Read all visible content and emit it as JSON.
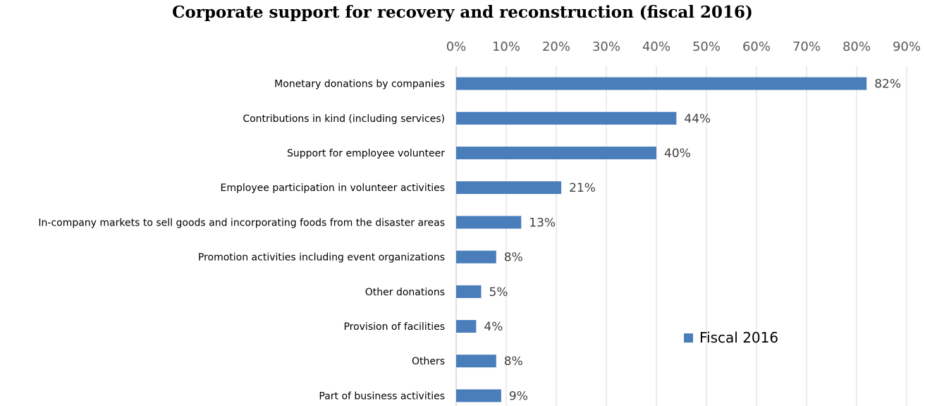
{
  "chart_data": {
    "type": "bar",
    "orientation": "horizontal",
    "title": "Corporate support for recovery and reconstruction (fiscal 2016)",
    "categories": [
      "Monetary donations by companies",
      "Contributions in kind (including services)",
      "Support for employee volunteer",
      "Employee participation in volunteer activities",
      "In-company markets to sell goods and incorporating foods from the disaster areas",
      "Promotion activities including event organizations",
      "Other donations",
      "Provision of facilities",
      "Others",
      "Part of business activities"
    ],
    "series": [
      {
        "name": "Fiscal 2016",
        "values": [
          82,
          44,
          40,
          21,
          13,
          8,
          5,
          4,
          8,
          9
        ],
        "labels": [
          "82%",
          "44%",
          "40%",
          "21%",
          "13%",
          "8%",
          "5%",
          "4%",
          "8%",
          "9%"
        ]
      }
    ],
    "xlim": [
      0,
      90
    ],
    "x_ticks": [
      "0%",
      "10%",
      "20%",
      "30%",
      "40%",
      "50%",
      "60%",
      "70%",
      "80%",
      "90%"
    ],
    "x_axis_position": "top",
    "grid": true,
    "legend": "center-right",
    "bar_color": "#4a7ebb",
    "grid_color": "#d9d9d9"
  }
}
